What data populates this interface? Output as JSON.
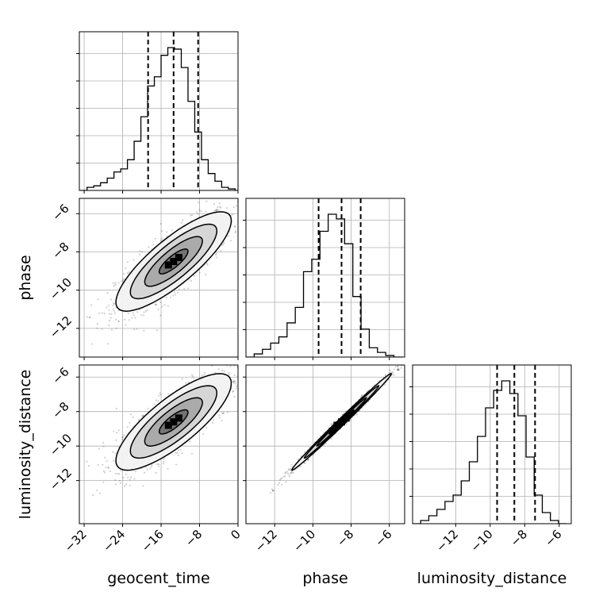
{
  "chart_data": {
    "type": "corner",
    "parameters": [
      {
        "name": "geocent_time",
        "label": "geocent_time",
        "range": [
          -33,
          0
        ],
        "ticks": [
          -32,
          -24,
          -16,
          -8,
          0
        ],
        "tick_labels": [
          "−32",
          "−24",
          "−16",
          "−8",
          "0"
        ],
        "quantiles": [
          -18.7,
          -13.4,
          -8.3
        ],
        "histogram": {
          "bins": [
            -32.8,
            -31.4,
            -30.0,
            -28.6,
            -27.2,
            -25.8,
            -24.4,
            -23.0,
            -21.6,
            -20.2,
            -18.8,
            -17.4,
            -16.0,
            -14.6,
            -13.2,
            -11.8,
            -10.4,
            -9.0,
            -7.6,
            -6.2,
            -4.8,
            -3.4,
            -2.0,
            -0.6,
            0.8
          ],
          "counts": [
            0,
            0.02,
            0.03,
            0.05,
            0.08,
            0.12,
            0.14,
            0.2,
            0.32,
            0.48,
            0.68,
            0.74,
            0.88,
            0.93,
            0.92,
            0.8,
            0.58,
            0.38,
            0.2,
            0.11,
            0.06,
            0.02,
            0.01,
            0
          ]
        }
      },
      {
        "name": "phase",
        "label": "phase",
        "range": [
          -13.5,
          -5.2
        ],
        "ticks": [
          -12,
          -10,
          -8,
          -6
        ],
        "tick_labels": [
          "−12",
          "−10",
          "−8",
          "−6"
        ],
        "quantiles": [
          -9.7,
          -8.5,
          -7.5
        ],
        "histogram": {
          "bins": [
            -13.5,
            -13.07,
            -12.64,
            -12.21,
            -11.78,
            -11.35,
            -10.92,
            -10.49,
            -10.06,
            -9.63,
            -9.2,
            -8.77,
            -8.34,
            -7.91,
            -7.48,
            -7.05,
            -6.62,
            -6.19,
            -5.76,
            -5.33
          ],
          "counts": [
            0,
            0.02,
            0.05,
            0.09,
            0.13,
            0.22,
            0.32,
            0.55,
            0.63,
            0.81,
            0.92,
            0.89,
            0.73,
            0.39,
            0.18,
            0.06,
            0.03,
            0.01,
            0
          ]
        }
      },
      {
        "name": "luminosity_distance",
        "label": "luminosity_distance",
        "range": [
          -14.5,
          -5.3
        ],
        "ticks": [
          -12,
          -10,
          -8,
          -6
        ],
        "tick_labels": [
          "−12",
          "−10",
          "−8",
          "−6"
        ],
        "quantiles": [
          -9.6,
          -8.6,
          -7.4
        ],
        "histogram": {
          "bins": [
            -14.5,
            -14.03,
            -13.56,
            -13.09,
            -12.62,
            -12.15,
            -11.68,
            -11.21,
            -10.74,
            -10.27,
            -9.8,
            -9.33,
            -8.86,
            -8.39,
            -7.92,
            -7.45,
            -6.98,
            -6.51,
            -6.04,
            -5.57
          ],
          "counts": [
            0,
            0.02,
            0.05,
            0.09,
            0.14,
            0.18,
            0.27,
            0.39,
            0.55,
            0.73,
            0.84,
            0.9,
            0.82,
            0.68,
            0.42,
            0.18,
            0.07,
            0.02,
            0
          ]
        }
      }
    ],
    "pairs": [
      {
        "x": "geocent_time",
        "y": "phase",
        "mean": [
          -13.4,
          -8.5
        ],
        "std": [
          6.0,
          1.3
        ],
        "correlation": 0.82
      },
      {
        "x": "geocent_time",
        "y": "luminosity_distance",
        "mean": [
          -13.4,
          -8.6
        ],
        "std": [
          6.0,
          1.4
        ],
        "correlation": 0.8
      },
      {
        "x": "phase",
        "y": "luminosity_distance",
        "mean": [
          -8.5,
          -8.6
        ],
        "std": [
          1.3,
          1.4
        ],
        "correlation": 0.995
      }
    ],
    "contour_levels_sigma": [
      0.5,
      1.0,
      1.5,
      2.0
    ],
    "grid": true
  }
}
